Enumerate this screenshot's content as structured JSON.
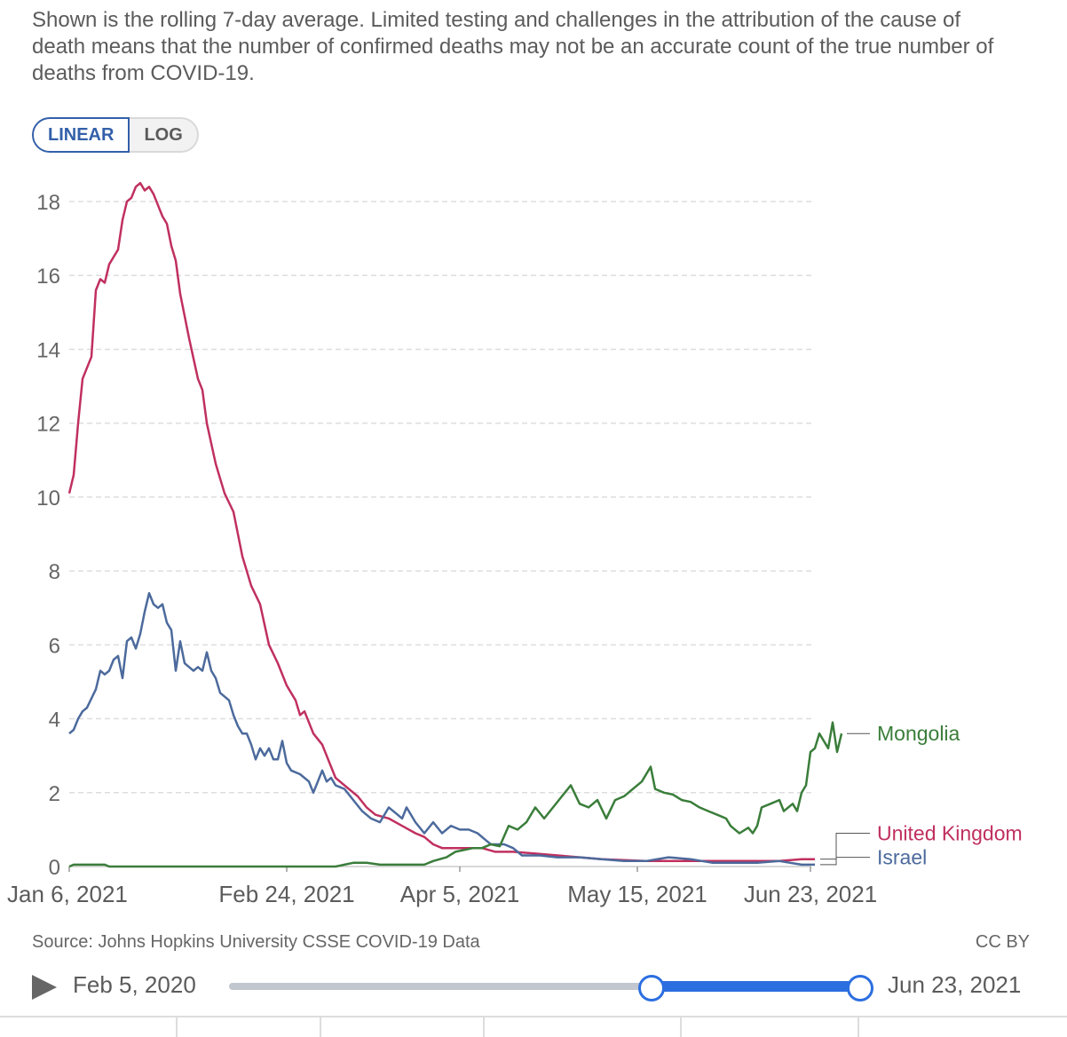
{
  "subtitle": "Shown is the rolling 7-day average. Limited testing and challenges in the attribution of the cause of death means that the number of confirmed deaths may not be an accurate count of the true number of deaths from COVID-19.",
  "scale_toggle": {
    "linear": "LINEAR",
    "log": "LOG"
  },
  "footer": {
    "source": "Source: Johns Hopkins University CSSE COVID-19 Data",
    "license": "CC BY"
  },
  "timeline": {
    "start": "Feb 5, 2020",
    "end": "Jun 23, 2021"
  },
  "colors": {
    "United Kingdom": "#c0305f",
    "Israel": "#4c6a9c",
    "Mongolia": "#3a7d3a"
  },
  "chart_data": {
    "type": "line",
    "title": "",
    "xlabel": "",
    "ylabel": "",
    "ylim": [
      0,
      18
    ],
    "yticks": [
      0,
      2,
      4,
      6,
      8,
      10,
      12,
      14,
      16,
      18
    ],
    "xlim": [
      0,
      168
    ],
    "xticks": [
      {
        "day": 0,
        "label": "Jan 6, 2021"
      },
      {
        "day": 49,
        "label": "Feb 24, 2021"
      },
      {
        "day": 88,
        "label": "Apr 5, 2021"
      },
      {
        "day": 128,
        "label": "May 15, 2021"
      },
      {
        "day": 167,
        "label": "Jun 23, 2021"
      }
    ],
    "series": [
      {
        "name": "United Kingdom",
        "points": [
          [
            0,
            10.1
          ],
          [
            1,
            10.6
          ],
          [
            2,
            12
          ],
          [
            3,
            13.2
          ],
          [
            5,
            13.8
          ],
          [
            6,
            15.6
          ],
          [
            7,
            15.9
          ],
          [
            8,
            15.8
          ],
          [
            9,
            16.3
          ],
          [
            11,
            16.7
          ],
          [
            12,
            17.5
          ],
          [
            13,
            18
          ],
          [
            14,
            18.1
          ],
          [
            15,
            18.4
          ],
          [
            16,
            18.5
          ],
          [
            17,
            18.3
          ],
          [
            18,
            18.4
          ],
          [
            19,
            18.2
          ],
          [
            20,
            17.9
          ],
          [
            21,
            17.6
          ],
          [
            22,
            17.4
          ],
          [
            23,
            16.8
          ],
          [
            24,
            16.4
          ],
          [
            25,
            15.5
          ],
          [
            27,
            14.3
          ],
          [
            29,
            13.2
          ],
          [
            30,
            12.9
          ],
          [
            31,
            12
          ],
          [
            33,
            10.9
          ],
          [
            35,
            10.1
          ],
          [
            37,
            9.6
          ],
          [
            39,
            8.4
          ],
          [
            41,
            7.6
          ],
          [
            43,
            7.1
          ],
          [
            45,
            6
          ],
          [
            47,
            5.5
          ],
          [
            49,
            4.9
          ],
          [
            51,
            4.5
          ],
          [
            52,
            4.1
          ],
          [
            53,
            4.2
          ],
          [
            55,
            3.6
          ],
          [
            57,
            3.3
          ],
          [
            58,
            3
          ],
          [
            60,
            2.4
          ],
          [
            62,
            2.2
          ],
          [
            65,
            1.9
          ],
          [
            67,
            1.6
          ],
          [
            69,
            1.4
          ],
          [
            72,
            1.3
          ],
          [
            75,
            1.1
          ],
          [
            78,
            0.9
          ],
          [
            80,
            0.8
          ],
          [
            82,
            0.6
          ],
          [
            84,
            0.5
          ],
          [
            87,
            0.5
          ],
          [
            90,
            0.5
          ],
          [
            93,
            0.5
          ],
          [
            96,
            0.4
          ],
          [
            100,
            0.4
          ],
          [
            105,
            0.35
          ],
          [
            110,
            0.3
          ],
          [
            115,
            0.25
          ],
          [
            120,
            0.2
          ],
          [
            130,
            0.15
          ],
          [
            140,
            0.15
          ],
          [
            150,
            0.15
          ],
          [
            160,
            0.15
          ],
          [
            165,
            0.2
          ],
          [
            168,
            0.2
          ]
        ]
      },
      {
        "name": "Israel",
        "points": [
          [
            0,
            3.6
          ],
          [
            1,
            3.7
          ],
          [
            2,
            4
          ],
          [
            3,
            4.2
          ],
          [
            4,
            4.3
          ],
          [
            6,
            4.8
          ],
          [
            7,
            5.3
          ],
          [
            8,
            5.2
          ],
          [
            9,
            5.3
          ],
          [
            10,
            5.6
          ],
          [
            11,
            5.7
          ],
          [
            12,
            5.1
          ],
          [
            13,
            6.1
          ],
          [
            14,
            6.2
          ],
          [
            15,
            5.9
          ],
          [
            16,
            6.3
          ],
          [
            17,
            6.9
          ],
          [
            18,
            7.4
          ],
          [
            19,
            7.1
          ],
          [
            20,
            7
          ],
          [
            21,
            7.1
          ],
          [
            22,
            6.6
          ],
          [
            23,
            6.4
          ],
          [
            24,
            5.3
          ],
          [
            25,
            6.1
          ],
          [
            26,
            5.5
          ],
          [
            27,
            5.4
          ],
          [
            28,
            5.3
          ],
          [
            29,
            5.4
          ],
          [
            30,
            5.3
          ],
          [
            31,
            5.8
          ],
          [
            32,
            5.3
          ],
          [
            33,
            5.1
          ],
          [
            34,
            4.7
          ],
          [
            35,
            4.6
          ],
          [
            36,
            4.5
          ],
          [
            37,
            4.1
          ],
          [
            38,
            3.8
          ],
          [
            39,
            3.6
          ],
          [
            40,
            3.6
          ],
          [
            41,
            3.3
          ],
          [
            42,
            2.9
          ],
          [
            43,
            3.2
          ],
          [
            44,
            3
          ],
          [
            45,
            3.2
          ],
          [
            46,
            2.9
          ],
          [
            47,
            2.9
          ],
          [
            48,
            3.4
          ],
          [
            49,
            2.8
          ],
          [
            50,
            2.6
          ],
          [
            52,
            2.5
          ],
          [
            53,
            2.4
          ],
          [
            54,
            2.3
          ],
          [
            55,
            2
          ],
          [
            56,
            2.3
          ],
          [
            57,
            2.6
          ],
          [
            58,
            2.3
          ],
          [
            59,
            2.4
          ],
          [
            60,
            2.2
          ],
          [
            62,
            2.1
          ],
          [
            64,
            1.8
          ],
          [
            66,
            1.5
          ],
          [
            68,
            1.3
          ],
          [
            70,
            1.2
          ],
          [
            72,
            1.6
          ],
          [
            74,
            1.4
          ],
          [
            75,
            1.3
          ],
          [
            76,
            1.6
          ],
          [
            78,
            1.2
          ],
          [
            80,
            0.9
          ],
          [
            82,
            1.2
          ],
          [
            84,
            0.9
          ],
          [
            86,
            1.1
          ],
          [
            88,
            1
          ],
          [
            90,
            1
          ],
          [
            92,
            0.9
          ],
          [
            94,
            0.7
          ],
          [
            95,
            0.6
          ],
          [
            96,
            0.6
          ],
          [
            98,
            0.6
          ],
          [
            100,
            0.5
          ],
          [
            102,
            0.3
          ],
          [
            104,
            0.3
          ],
          [
            106,
            0.3
          ],
          [
            110,
            0.25
          ],
          [
            115,
            0.25
          ],
          [
            120,
            0.2
          ],
          [
            125,
            0.15
          ],
          [
            130,
            0.15
          ],
          [
            135,
            0.25
          ],
          [
            140,
            0.2
          ],
          [
            145,
            0.1
          ],
          [
            150,
            0.1
          ],
          [
            155,
            0.1
          ],
          [
            160,
            0.15
          ],
          [
            165,
            0.05
          ],
          [
            168,
            0.05
          ]
        ]
      },
      {
        "name": "Mongolia",
        "points": [
          [
            0,
            0
          ],
          [
            1,
            0.05
          ],
          [
            8,
            0.05
          ],
          [
            9,
            0
          ],
          [
            60,
            0
          ],
          [
            62,
            0.05
          ],
          [
            64,
            0.1
          ],
          [
            67,
            0.1
          ],
          [
            70,
            0.05
          ],
          [
            80,
            0.05
          ],
          [
            82,
            0.15
          ],
          [
            85,
            0.25
          ],
          [
            87,
            0.4
          ],
          [
            89,
            0.45
          ],
          [
            91,
            0.5
          ],
          [
            93,
            0.5
          ],
          [
            95,
            0.6
          ],
          [
            97,
            0.55
          ],
          [
            99,
            1.1
          ],
          [
            101,
            1
          ],
          [
            103,
            1.2
          ],
          [
            105,
            1.6
          ],
          [
            107,
            1.3
          ],
          [
            109,
            1.6
          ],
          [
            111,
            1.9
          ],
          [
            113,
            2.2
          ],
          [
            115,
            1.7
          ],
          [
            117,
            1.6
          ],
          [
            119,
            1.8
          ],
          [
            121,
            1.3
          ],
          [
            123,
            1.8
          ],
          [
            125,
            1.9
          ],
          [
            127,
            2.1
          ],
          [
            129,
            2.3
          ],
          [
            131,
            2.7
          ],
          [
            132,
            2.1
          ],
          [
            134,
            2
          ],
          [
            136,
            1.95
          ],
          [
            138,
            1.8
          ],
          [
            140,
            1.75
          ],
          [
            142,
            1.6
          ],
          [
            144,
            1.5
          ],
          [
            146,
            1.4
          ],
          [
            148,
            1.3
          ],
          [
            149,
            1.1
          ],
          [
            150,
            1
          ],
          [
            151,
            0.9
          ],
          [
            153,
            1.05
          ],
          [
            154,
            0.9
          ],
          [
            155,
            1.1
          ],
          [
            156,
            1.6
          ],
          [
            158,
            1.7
          ],
          [
            160,
            1.8
          ],
          [
            161,
            1.5
          ],
          [
            162,
            1.6
          ],
          [
            163,
            1.7
          ],
          [
            164,
            1.5
          ],
          [
            165,
            2
          ],
          [
            166,
            2.2
          ],
          [
            167,
            3.1
          ],
          [
            168,
            3.2
          ],
          [
            169,
            3.6
          ],
          [
            170,
            3.4
          ],
          [
            171,
            3.2
          ],
          [
            172,
            3.9
          ],
          [
            173,
            3.1
          ],
          [
            174,
            3.6
          ]
        ]
      }
    ],
    "legend": [
      {
        "name": "Mongolia",
        "label_y": 3.6
      },
      {
        "name": "United Kingdom",
        "label_y": 0.9
      },
      {
        "name": "Israel",
        "label_y": 0.25
      }
    ]
  }
}
